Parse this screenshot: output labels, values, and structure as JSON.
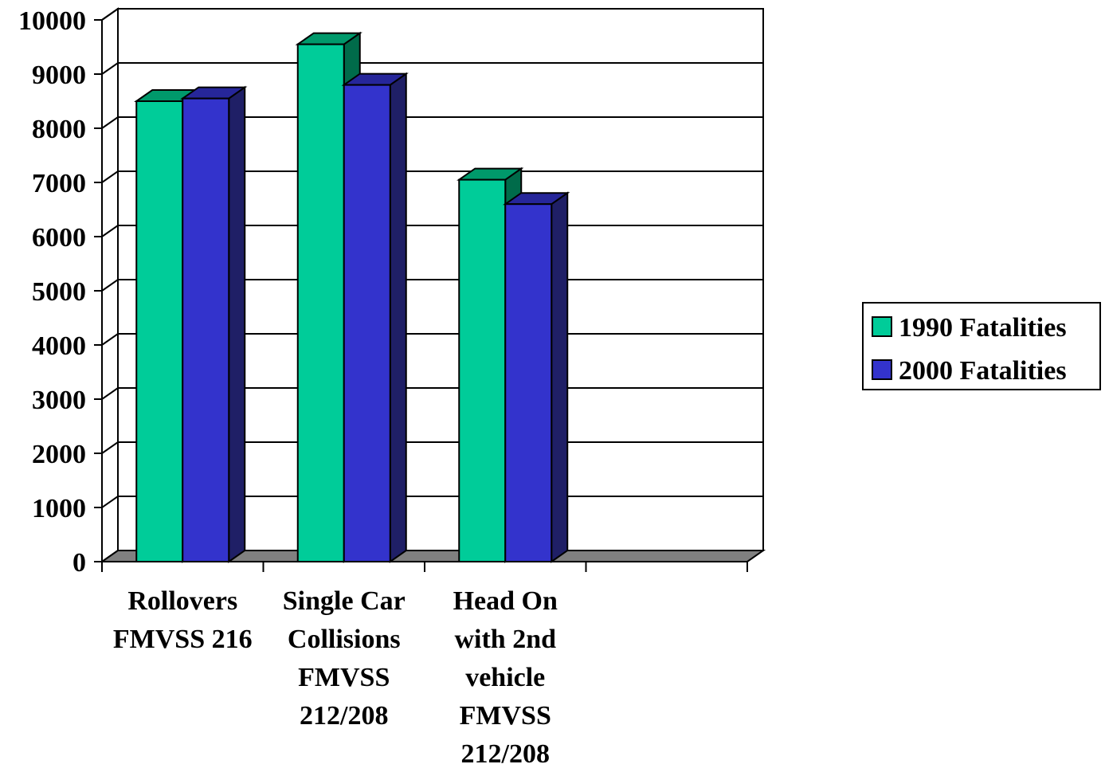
{
  "chart_data": {
    "type": "bar",
    "variant": "3d-clustered-column",
    "categories": [
      [
        "Rollovers",
        "FMVSS 216"
      ],
      [
        "Single Car",
        "Collisions",
        "FMVSS",
        "212/208"
      ],
      [
        "Head On",
        "with 2nd",
        "vehicle",
        "FMVSS",
        "212/208"
      ],
      []
    ],
    "series": [
      {
        "name": "1990 Fatalities",
        "values": [
          8500,
          9550,
          7050,
          null
        ]
      },
      {
        "name": "2000 Fatalities",
        "values": [
          8550,
          8800,
          6600,
          null
        ]
      }
    ],
    "y_ticks": [
      "0",
      "1000",
      "2000",
      "3000",
      "4000",
      "5000",
      "6000",
      "7000",
      "8000",
      "9000",
      "10000"
    ],
    "ylim": [
      0,
      10000
    ],
    "grid": true,
    "legend_position": "right",
    "title": "",
    "xlabel": "",
    "ylabel": ""
  },
  "colors": {
    "series_front": [
      "#00cc99",
      "#3333cc"
    ],
    "series_top": [
      "#00996b",
      "#26269a"
    ],
    "series_side": [
      "#006b4a",
      "#1f1f66"
    ],
    "floor": "#808080",
    "grid": "#000000"
  }
}
